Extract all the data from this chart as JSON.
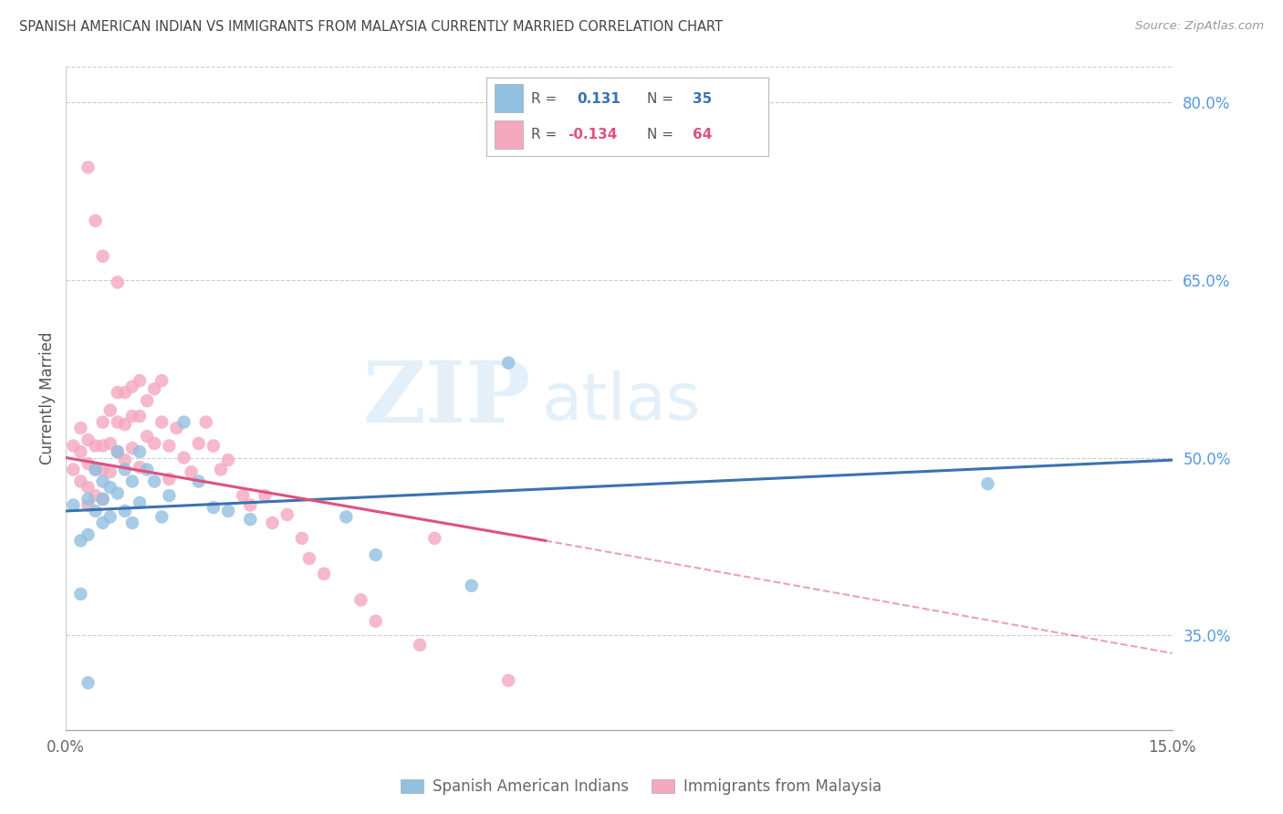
{
  "title": "SPANISH AMERICAN INDIAN VS IMMIGRANTS FROM MALAYSIA CURRENTLY MARRIED CORRELATION CHART",
  "source": "Source: ZipAtlas.com",
  "ylabel": "Currently Married",
  "xlim": [
    0.0,
    0.15
  ],
  "ylim": [
    0.27,
    0.83
  ],
  "xtick_vals": [
    0.0,
    0.03,
    0.06,
    0.09,
    0.12,
    0.15
  ],
  "xtick_labels": [
    "0.0%",
    "",
    "",
    "",
    "",
    "15.0%"
  ],
  "ytick_vals_right": [
    0.8,
    0.65,
    0.5,
    0.35
  ],
  "ytick_labels_right": [
    "80.0%",
    "65.0%",
    "50.0%",
    "35.0%"
  ],
  "blue_R": 0.131,
  "blue_N": 35,
  "pink_R": -0.134,
  "pink_N": 64,
  "blue_color": "#92c0e0",
  "pink_color": "#f4a8be",
  "blue_line_color": "#3a72b0",
  "pink_line_color": "#e05080",
  "blue_line_x0": 0.0,
  "blue_line_y0": 0.455,
  "blue_line_x1": 0.15,
  "blue_line_y1": 0.498,
  "pink_line_x0": 0.0,
  "pink_line_y0": 0.5,
  "pink_line_solid_x1": 0.065,
  "pink_line_solid_y1": 0.43,
  "pink_line_dash_x1": 0.15,
  "pink_line_dash_y1": 0.335,
  "blue_scatter_x": [
    0.001,
    0.002,
    0.002,
    0.003,
    0.003,
    0.004,
    0.004,
    0.005,
    0.005,
    0.005,
    0.006,
    0.006,
    0.007,
    0.007,
    0.008,
    0.008,
    0.009,
    0.009,
    0.01,
    0.01,
    0.011,
    0.012,
    0.013,
    0.014,
    0.016,
    0.018,
    0.02,
    0.022,
    0.025,
    0.038,
    0.042,
    0.055,
    0.06,
    0.125,
    0.003
  ],
  "blue_scatter_y": [
    0.46,
    0.43,
    0.385,
    0.465,
    0.435,
    0.455,
    0.49,
    0.465,
    0.48,
    0.445,
    0.475,
    0.45,
    0.505,
    0.47,
    0.49,
    0.455,
    0.48,
    0.445,
    0.505,
    0.462,
    0.49,
    0.48,
    0.45,
    0.468,
    0.53,
    0.48,
    0.458,
    0.455,
    0.448,
    0.45,
    0.418,
    0.392,
    0.58,
    0.478,
    0.31
  ],
  "pink_scatter_x": [
    0.001,
    0.001,
    0.002,
    0.002,
    0.002,
    0.003,
    0.003,
    0.003,
    0.003,
    0.004,
    0.004,
    0.004,
    0.005,
    0.005,
    0.005,
    0.005,
    0.006,
    0.006,
    0.006,
    0.007,
    0.007,
    0.007,
    0.008,
    0.008,
    0.008,
    0.009,
    0.009,
    0.009,
    0.01,
    0.01,
    0.01,
    0.011,
    0.011,
    0.012,
    0.012,
    0.013,
    0.013,
    0.014,
    0.014,
    0.015,
    0.016,
    0.017,
    0.018,
    0.019,
    0.02,
    0.021,
    0.022,
    0.024,
    0.025,
    0.027,
    0.028,
    0.03,
    0.032,
    0.033,
    0.035,
    0.04,
    0.042,
    0.048,
    0.05,
    0.06,
    0.003,
    0.004,
    0.005,
    0.007
  ],
  "pink_scatter_y": [
    0.51,
    0.49,
    0.525,
    0.505,
    0.48,
    0.515,
    0.495,
    0.475,
    0.46,
    0.51,
    0.49,
    0.468,
    0.53,
    0.51,
    0.49,
    0.465,
    0.54,
    0.512,
    0.488,
    0.555,
    0.53,
    0.505,
    0.555,
    0.528,
    0.498,
    0.56,
    0.535,
    0.508,
    0.565,
    0.535,
    0.492,
    0.548,
    0.518,
    0.558,
    0.512,
    0.565,
    0.53,
    0.51,
    0.482,
    0.525,
    0.5,
    0.488,
    0.512,
    0.53,
    0.51,
    0.49,
    0.498,
    0.468,
    0.46,
    0.468,
    0.445,
    0.452,
    0.432,
    0.415,
    0.402,
    0.38,
    0.362,
    0.342,
    0.432,
    0.312,
    0.745,
    0.7,
    0.67,
    0.648
  ],
  "watermark_zip": "ZIP",
  "watermark_atlas": "atlas",
  "grid_color": "#cccccc",
  "background_color": "#ffffff"
}
